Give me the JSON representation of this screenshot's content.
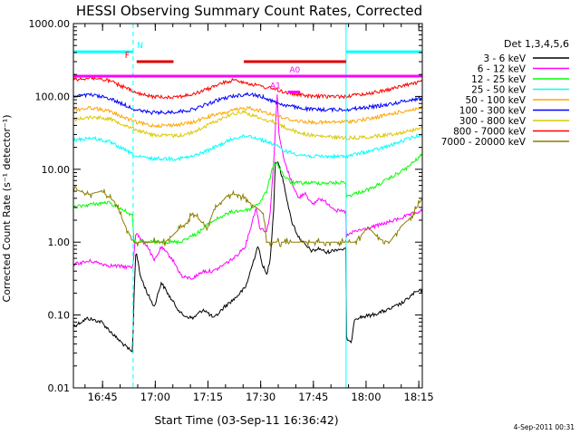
{
  "chart_data": {
    "type": "line",
    "title": "HESSI Observing Summary Count Rates, Corrected",
    "xlabel": "Start Time (03-Sep-11 16:36:42)",
    "ylabel": "Corrected Count Rate (s⁻¹ detector⁻¹)",
    "x_unit": "minutes after 03-Sep-11 16:36:42",
    "xlim": [
      0,
      99.3
    ],
    "ylim": [
      0.01,
      1000
    ],
    "yscale": "log",
    "x_ticks": [
      {
        "label": "16:45",
        "x": 8.3
      },
      {
        "label": "17:00",
        "x": 23.3
      },
      {
        "label": "17:15",
        "x": 38.3
      },
      {
        "label": "17:30",
        "x": 53.3
      },
      {
        "label": "17:45",
        "x": 68.3
      },
      {
        "label": "18:00",
        "x": 83.3
      },
      {
        "label": "18:15",
        "x": 98.3
      }
    ],
    "y_ticks": [
      {
        "label": "0.01",
        "v": 0.01
      },
      {
        "label": "0.10",
        "v": 0.1
      },
      {
        "label": "1.00",
        "v": 1
      },
      {
        "label": "10.00",
        "v": 10
      },
      {
        "label": "100.00",
        "v": 100
      },
      {
        "label": "1000.00",
        "v": 1000
      }
    ],
    "legend_title": "Det 1,3,4,5,6",
    "legend_position": "right",
    "series": [
      {
        "name": "3 - 6 keV",
        "color": "#000000",
        "points": [
          [
            0,
            0.07
          ],
          [
            4,
            0.09
          ],
          [
            8,
            0.08
          ],
          [
            12,
            0.05
          ],
          [
            16.9,
            0.03
          ],
          [
            17.1,
            0.12
          ],
          [
            17.8,
            0.8
          ],
          [
            19,
            0.35
          ],
          [
            21,
            0.2
          ],
          [
            23,
            0.13
          ],
          [
            25,
            0.28
          ],
          [
            28,
            0.16
          ],
          [
            31,
            0.1
          ],
          [
            34,
            0.09
          ],
          [
            37,
            0.12
          ],
          [
            40,
            0.09
          ],
          [
            43,
            0.13
          ],
          [
            46,
            0.17
          ],
          [
            49,
            0.24
          ],
          [
            51,
            0.5
          ],
          [
            52.5,
            0.9
          ],
          [
            53.5,
            0.55
          ],
          [
            55,
            0.35
          ],
          [
            56,
            0.6
          ],
          [
            57,
            2.8
          ],
          [
            57.4,
            12
          ],
          [
            58.2,
            13
          ],
          [
            60,
            6
          ],
          [
            62,
            2
          ],
          [
            64,
            1.2
          ],
          [
            66,
            0.9
          ],
          [
            68,
            0.75
          ],
          [
            70,
            0.82
          ],
          [
            72,
            0.72
          ],
          [
            75,
            0.8
          ],
          [
            77.5,
            0.8
          ],
          [
            77.6,
            0.05
          ],
          [
            79,
            0.04
          ],
          [
            80,
            0.09
          ],
          [
            85,
            0.1
          ],
          [
            90,
            0.12
          ],
          [
            94,
            0.15
          ],
          [
            97,
            0.2
          ],
          [
            99.3,
            0.22
          ]
        ]
      },
      {
        "name": "6 - 12 keV",
        "color": "#ff00ff",
        "points": [
          [
            0,
            0.5
          ],
          [
            5,
            0.55
          ],
          [
            10,
            0.48
          ],
          [
            16.9,
            0.45
          ],
          [
            17.1,
            0.6
          ],
          [
            17.8,
            1.4
          ],
          [
            19,
            1.1
          ],
          [
            21,
            0.9
          ],
          [
            23,
            0.55
          ],
          [
            25,
            0.85
          ],
          [
            28,
            0.6
          ],
          [
            31,
            0.33
          ],
          [
            34,
            0.32
          ],
          [
            37,
            0.4
          ],
          [
            40,
            0.4
          ],
          [
            43,
            0.5
          ],
          [
            46,
            0.62
          ],
          [
            49,
            0.9
          ],
          [
            51,
            2
          ],
          [
            52,
            3
          ],
          [
            53,
            1.6
          ],
          [
            55,
            1.4
          ],
          [
            56,
            2.5
          ],
          [
            57,
            13
          ],
          [
            58,
            110
          ],
          [
            58.5,
            30
          ],
          [
            60,
            13
          ],
          [
            62,
            7
          ],
          [
            64,
            4
          ],
          [
            66,
            4.8
          ],
          [
            68,
            3.2
          ],
          [
            70,
            4
          ],
          [
            72,
            3.5
          ],
          [
            75,
            2.7
          ],
          [
            77.5,
            2.6
          ],
          [
            77.6,
            1.2
          ],
          [
            80,
            1.4
          ],
          [
            85,
            1.6
          ],
          [
            90,
            1.9
          ],
          [
            95,
            2.3
          ],
          [
            99.3,
            2.7
          ]
        ]
      },
      {
        "name": "12 - 25 keV",
        "color": "#00ff00",
        "points": [
          [
            0,
            3
          ],
          [
            5,
            3.3
          ],
          [
            10,
            3.5
          ],
          [
            14,
            2.8
          ],
          [
            16.9,
            2.3
          ],
          [
            17.1,
            1.0
          ],
          [
            20,
            1.0
          ],
          [
            25,
            1.0
          ],
          [
            30,
            1.0
          ],
          [
            35,
            1.3
          ],
          [
            40,
            2.0
          ],
          [
            45,
            2.6
          ],
          [
            50,
            2.8
          ],
          [
            53,
            3.5
          ],
          [
            55,
            5
          ],
          [
            57,
            12
          ],
          [
            58,
            12
          ],
          [
            60,
            8
          ],
          [
            62,
            6.5
          ],
          [
            65,
            6.5
          ],
          [
            70,
            6.5
          ],
          [
            75,
            6.5
          ],
          [
            77.5,
            6.6
          ],
          [
            77.6,
            4.2
          ],
          [
            80,
            4.6
          ],
          [
            85,
            5.5
          ],
          [
            90,
            7.5
          ],
          [
            95,
            10.5
          ],
          [
            99.3,
            16
          ]
        ]
      },
      {
        "name": "25 - 50 keV",
        "color": "#00ffff",
        "points": [
          [
            0,
            25
          ],
          [
            5,
            27
          ],
          [
            10,
            24
          ],
          [
            15,
            18
          ],
          [
            18,
            15
          ],
          [
            22,
            14
          ],
          [
            26,
            14
          ],
          [
            30,
            14
          ],
          [
            34,
            15
          ],
          [
            38,
            18
          ],
          [
            42,
            22
          ],
          [
            46,
            27
          ],
          [
            50,
            29
          ],
          [
            54,
            25
          ],
          [
            57,
            22
          ],
          [
            60,
            18
          ],
          [
            64,
            16
          ],
          [
            68,
            15
          ],
          [
            72,
            15
          ],
          [
            77.5,
            15
          ],
          [
            80,
            16
          ],
          [
            85,
            18
          ],
          [
            90,
            21
          ],
          [
            95,
            26
          ],
          [
            99.3,
            30
          ]
        ]
      },
      {
        "name": "50 - 100 keV",
        "color": "#ffa500",
        "points": [
          [
            0,
            65
          ],
          [
            5,
            70
          ],
          [
            10,
            63
          ],
          [
            15,
            50
          ],
          [
            18,
            44
          ],
          [
            22,
            40
          ],
          [
            26,
            40
          ],
          [
            30,
            41
          ],
          [
            34,
            44
          ],
          [
            38,
            52
          ],
          [
            42,
            58
          ],
          [
            46,
            65
          ],
          [
            50,
            70
          ],
          [
            54,
            62
          ],
          [
            57,
            56
          ],
          [
            60,
            50
          ],
          [
            64,
            46
          ],
          [
            68,
            44
          ],
          [
            72,
            44
          ],
          [
            77.5,
            45
          ],
          [
            80,
            46
          ],
          [
            85,
            50
          ],
          [
            90,
            57
          ],
          [
            95,
            64
          ],
          [
            99.3,
            70
          ]
        ]
      },
      {
        "name": "100 - 300 keV",
        "color": "#0000ff",
        "points": [
          [
            0,
            100
          ],
          [
            5,
            105
          ],
          [
            10,
            95
          ],
          [
            15,
            75
          ],
          [
            18,
            65
          ],
          [
            22,
            60
          ],
          [
            26,
            60
          ],
          [
            30,
            62
          ],
          [
            34,
            66
          ],
          [
            38,
            78
          ],
          [
            42,
            92
          ],
          [
            46,
            102
          ],
          [
            50,
            108
          ],
          [
            54,
            98
          ],
          [
            57,
            85
          ],
          [
            60,
            76
          ],
          [
            64,
            70
          ],
          [
            68,
            66
          ],
          [
            72,
            66
          ],
          [
            77.5,
            66
          ],
          [
            80,
            68
          ],
          [
            85,
            72
          ],
          [
            90,
            78
          ],
          [
            95,
            88
          ],
          [
            99.3,
            95
          ]
        ]
      },
      {
        "name": "300 - 800 keV",
        "color": "#dcc800",
        "points": [
          [
            0,
            48
          ],
          [
            5,
            52
          ],
          [
            10,
            50
          ],
          [
            15,
            40
          ],
          [
            18,
            35
          ],
          [
            22,
            30
          ],
          [
            26,
            29
          ],
          [
            30,
            29
          ],
          [
            34,
            32
          ],
          [
            38,
            40
          ],
          [
            44,
            55
          ],
          [
            48,
            62
          ],
          [
            51,
            55
          ],
          [
            54,
            48
          ],
          [
            57,
            45
          ],
          [
            60,
            38
          ],
          [
            64,
            32
          ],
          [
            68,
            29
          ],
          [
            72,
            28
          ],
          [
            77.5,
            27
          ],
          [
            80,
            27
          ],
          [
            85,
            28
          ],
          [
            90,
            30
          ],
          [
            95,
            33
          ],
          [
            99.3,
            38
          ]
        ]
      },
      {
        "name": "800 - 7000 keV",
        "color": "#ff0000",
        "points": [
          [
            0,
            170
          ],
          [
            5,
            180
          ],
          [
            10,
            165
          ],
          [
            15,
            130
          ],
          [
            18,
            110
          ],
          [
            22,
            100
          ],
          [
            26,
            98
          ],
          [
            30,
            100
          ],
          [
            34,
            106
          ],
          [
            38,
            125
          ],
          [
            42,
            150
          ],
          [
            46,
            170
          ],
          [
            50,
            150
          ],
          [
            54,
            135
          ],
          [
            57,
            128
          ],
          [
            60,
            115
          ],
          [
            64,
            106
          ],
          [
            68,
            100
          ],
          [
            72,
            100
          ],
          [
            77.5,
            100
          ],
          [
            80,
            104
          ],
          [
            85,
            112
          ],
          [
            90,
            125
          ],
          [
            95,
            145
          ],
          [
            99.3,
            160
          ]
        ]
      },
      {
        "name": "7000 - 20000 keV",
        "color": "#8b7d00",
        "points": [
          [
            0,
            5.5
          ],
          [
            4,
            4.5
          ],
          [
            8,
            5
          ],
          [
            12,
            3.5
          ],
          [
            14,
            2.0
          ],
          [
            17,
            1.0
          ],
          [
            20,
            1.0
          ],
          [
            23,
            1.0
          ],
          [
            26,
            1.0
          ],
          [
            28,
            1.2
          ],
          [
            30,
            1.5
          ],
          [
            32,
            1.8
          ],
          [
            34,
            2.5
          ],
          [
            36,
            2.0
          ],
          [
            38,
            1.5
          ],
          [
            40,
            2.8
          ],
          [
            42,
            3.5
          ],
          [
            44,
            4.5
          ],
          [
            47,
            4.5
          ],
          [
            50,
            3.5
          ],
          [
            52,
            3.0
          ],
          [
            54,
            2.5
          ],
          [
            55,
            1.0
          ],
          [
            57,
            1.0
          ],
          [
            60,
            1.0
          ],
          [
            65,
            1.0
          ],
          [
            70,
            1.0
          ],
          [
            75,
            1.0
          ],
          [
            77.5,
            1.0
          ],
          [
            80,
            1.0
          ],
          [
            84,
            1.6
          ],
          [
            87,
            1.1
          ],
          [
            90,
            1.0
          ],
          [
            93,
            1.6
          ],
          [
            96,
            2.2
          ],
          [
            99.3,
            4.0
          ]
        ]
      }
    ],
    "vertical_lines": [
      {
        "x": 0,
        "color": "#00ffff",
        "style": "solid"
      },
      {
        "x": 17,
        "color": "#00ffff",
        "style": "dashed"
      },
      {
        "x": 77.6,
        "color": "#00ffff",
        "style": "solid"
      },
      {
        "x": 99.3,
        "color": "#00ffff",
        "style": "dashed"
      }
    ],
    "flag_bars": [
      {
        "x0": 0,
        "x1": 17,
        "v": 410,
        "color": "#00ffff",
        "label": "N",
        "label_x": 19
      },
      {
        "x0": 77.6,
        "x1": 99.3,
        "v": 410,
        "color": "#00ffff",
        "label": "",
        "label_x": 0
      },
      {
        "x0": 18,
        "x1": 28.5,
        "v": 300,
        "color": "#dd0000",
        "label": "F",
        "label_x": 15.3
      },
      {
        "x0": 48.5,
        "x1": 77.6,
        "v": 300,
        "color": "#dd0000",
        "label": "",
        "label_x": 0
      },
      {
        "x0": 0,
        "x1": 99.3,
        "v": 190,
        "color": "#ff00ff",
        "label": "A0",
        "label_x": 63
      },
      {
        "x0": 61,
        "x1": 64.5,
        "v": 115,
        "color": "#ff00ff",
        "label": "A1",
        "label_x": 57.5
      }
    ],
    "footer": "4-Sep-2011 00:31"
  }
}
